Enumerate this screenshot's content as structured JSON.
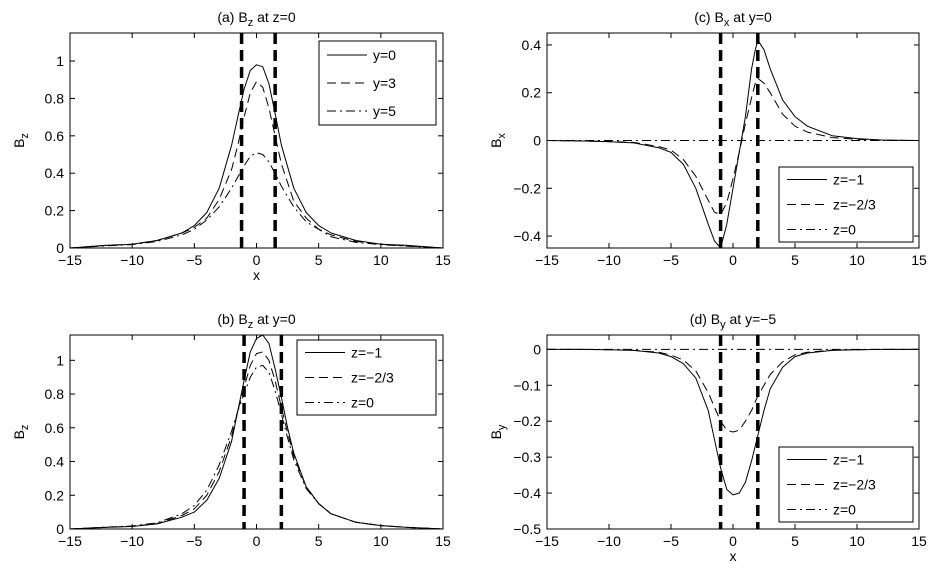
{
  "chart_data": [
    {
      "type": "line",
      "title": "(a) B",
      "title_sub": "z",
      "title_rest": " at z=0",
      "xlabel": "x",
      "ylabel": "B",
      "ylabel_sub": "z",
      "xlim": [
        -15,
        15
      ],
      "ylim": [
        0,
        1.15
      ],
      "xticks": [
        -15,
        -10,
        -5,
        0,
        5,
        10,
        15
      ],
      "yticks": [
        0,
        0.2,
        0.4,
        0.6,
        0.8,
        1
      ],
      "xtick_labels": [
        "−15",
        "−10",
        "−5",
        "0",
        "5",
        "10",
        "15"
      ],
      "ytick_labels": [
        "0",
        "0.2",
        "0.4",
        "0.6",
        "0.8",
        "1"
      ],
      "vlines": [
        -1.2,
        1.5
      ],
      "legend_position": "top-right",
      "x": [
        -15,
        -12,
        -10,
        -8,
        -6,
        -5,
        -4,
        -3,
        -2,
        -1.5,
        -1,
        -0.5,
        0,
        0.5,
        1,
        1.5,
        2,
        3,
        4,
        5,
        6,
        8,
        10,
        12,
        15
      ],
      "series": [
        {
          "name": "y=0",
          "dash": "solid",
          "values": [
            0.0,
            0.015,
            0.02,
            0.04,
            0.08,
            0.12,
            0.19,
            0.32,
            0.55,
            0.7,
            0.85,
            0.95,
            0.98,
            0.97,
            0.88,
            0.72,
            0.55,
            0.32,
            0.19,
            0.12,
            0.08,
            0.04,
            0.02,
            0.015,
            0.0
          ]
        },
        {
          "name": "y=3",
          "dash": "dashed",
          "values": [
            0.0,
            0.015,
            0.02,
            0.04,
            0.08,
            0.11,
            0.16,
            0.26,
            0.42,
            0.55,
            0.7,
            0.83,
            0.89,
            0.86,
            0.75,
            0.6,
            0.45,
            0.25,
            0.16,
            0.1,
            0.07,
            0.035,
            0.02,
            0.012,
            0.0
          ]
        },
        {
          "name": "y=5",
          "dash": "dashdot",
          "values": [
            0.0,
            0.012,
            0.018,
            0.035,
            0.07,
            0.1,
            0.15,
            0.22,
            0.32,
            0.38,
            0.44,
            0.49,
            0.51,
            0.5,
            0.46,
            0.4,
            0.33,
            0.22,
            0.14,
            0.1,
            0.06,
            0.03,
            0.018,
            0.01,
            0.0
          ]
        }
      ]
    },
    {
      "type": "line",
      "title": "(c) B",
      "title_sub": "x",
      "title_rest": " at y=0",
      "xlabel": "",
      "ylabel": "B",
      "ylabel_sub": "x",
      "xlim": [
        -15,
        15
      ],
      "ylim": [
        -0.45,
        0.45
      ],
      "xticks": [
        -15,
        -10,
        -5,
        0,
        5,
        10,
        15
      ],
      "yticks": [
        -0.4,
        -0.2,
        0,
        0.2,
        0.4
      ],
      "xtick_labels": [
        "−15",
        "−10",
        "−5",
        "0",
        "5",
        "10",
        "15"
      ],
      "ytick_labels": [
        "−0.4",
        "−0.2",
        "0",
        "0.2",
        "0.4"
      ],
      "vlines": [
        -1,
        2
      ],
      "legend_position": "bottom-right",
      "x": [
        -15,
        -12,
        -10,
        -8,
        -6,
        -5,
        -4,
        -3,
        -2,
        -1.5,
        -1,
        -0.5,
        0,
        0.5,
        1,
        1.5,
        1.8,
        2,
        2.5,
        3,
        4,
        5,
        6,
        8,
        10,
        12,
        15
      ],
      "series": [
        {
          "name": "z=−1",
          "dash": "solid",
          "values": [
            0.0,
            -0.002,
            -0.005,
            -0.01,
            -0.03,
            -0.05,
            -0.1,
            -0.2,
            -0.35,
            -0.42,
            -0.45,
            -0.35,
            -0.2,
            -0.05,
            0.1,
            0.3,
            0.38,
            0.42,
            0.38,
            0.3,
            0.17,
            0.1,
            0.06,
            0.02,
            0.008,
            0.002,
            0.0
          ]
        },
        {
          "name": "z=−2/3",
          "dash": "dashed",
          "values": [
            0.0,
            -0.002,
            -0.004,
            -0.008,
            -0.025,
            -0.04,
            -0.08,
            -0.15,
            -0.25,
            -0.3,
            -0.31,
            -0.26,
            -0.16,
            -0.05,
            0.07,
            0.18,
            0.24,
            0.26,
            0.24,
            0.2,
            0.11,
            0.06,
            0.035,
            0.012,
            0.005,
            0.001,
            0.0
          ]
        },
        {
          "name": "z=0",
          "dash": "dashdot",
          "values": [
            0,
            0,
            0,
            0,
            0,
            0,
            0,
            0,
            0,
            0,
            0,
            0,
            0,
            0,
            0,
            0,
            0,
            0,
            0,
            0,
            0,
            0,
            0,
            0,
            0,
            0,
            0
          ]
        }
      ]
    },
    {
      "type": "line",
      "title": "(b) B",
      "title_sub": "z",
      "title_rest": " at y=0",
      "xlabel": "",
      "ylabel": "B",
      "ylabel_sub": "z",
      "xlim": [
        -15,
        15
      ],
      "ylim": [
        0,
        1.15
      ],
      "xticks": [
        -15,
        -10,
        -5,
        0,
        5,
        10,
        15
      ],
      "yticks": [
        0,
        0.2,
        0.4,
        0.6,
        0.8,
        1
      ],
      "xtick_labels": [
        "−15",
        "−10",
        "−5",
        "0",
        "5",
        "10",
        "15"
      ],
      "ytick_labels": [
        "0",
        "0.2",
        "0.4",
        "0.6",
        "0.8",
        "1"
      ],
      "vlines": [
        -1,
        2
      ],
      "legend_position": "top-right",
      "x": [
        -15,
        -12,
        -10,
        -8,
        -6,
        -5,
        -4,
        -3,
        -2,
        -1.5,
        -1,
        -0.5,
        0,
        0.5,
        1,
        1.5,
        2,
        2.5,
        3,
        4,
        5,
        6,
        8,
        10,
        12,
        15
      ],
      "series": [
        {
          "name": "z=−1",
          "dash": "solid",
          "values": [
            0.0,
            0.01,
            0.015,
            0.03,
            0.07,
            0.1,
            0.17,
            0.3,
            0.52,
            0.7,
            0.88,
            1.05,
            1.13,
            1.15,
            1.1,
            0.95,
            0.78,
            0.6,
            0.45,
            0.25,
            0.15,
            0.09,
            0.04,
            0.02,
            0.01,
            0.0
          ]
        },
        {
          "name": "z=−2/3",
          "dash": "dashed",
          "values": [
            0.0,
            0.01,
            0.016,
            0.032,
            0.08,
            0.12,
            0.2,
            0.34,
            0.55,
            0.7,
            0.84,
            0.97,
            1.04,
            1.05,
            1.0,
            0.88,
            0.72,
            0.57,
            0.43,
            0.25,
            0.15,
            0.09,
            0.04,
            0.02,
            0.01,
            0.0
          ]
        },
        {
          "name": "z=0",
          "dash": "dashdot",
          "values": [
            0.0,
            0.012,
            0.018,
            0.036,
            0.09,
            0.14,
            0.23,
            0.38,
            0.58,
            0.7,
            0.8,
            0.9,
            0.96,
            0.97,
            0.93,
            0.82,
            0.68,
            0.54,
            0.41,
            0.24,
            0.15,
            0.09,
            0.04,
            0.02,
            0.01,
            0.0
          ]
        }
      ]
    },
    {
      "type": "line",
      "title": "(d) B",
      "title_sub": "y",
      "title_rest": " at y=−5",
      "xlabel": "x",
      "ylabel": "B",
      "ylabel_sub": "y",
      "xlim": [
        -15,
        15
      ],
      "ylim": [
        -0.5,
        0.04
      ],
      "xticks": [
        -15,
        -10,
        -5,
        0,
        5,
        10,
        15
      ],
      "yticks": [
        -0.5,
        -0.4,
        -0.3,
        -0.2,
        -0.1,
        0
      ],
      "xtick_labels": [
        "−15",
        "−10",
        "−5",
        "0",
        "5",
        "10",
        "15"
      ],
      "ytick_labels": [
        "−0.5",
        "−0.4",
        "−0.3",
        "−0.2",
        "−0.1",
        "0"
      ],
      "vlines": [
        -1,
        2
      ],
      "legend_position": "bottom-right",
      "x": [
        -15,
        -12,
        -10,
        -8,
        -6,
        -5,
        -4,
        -3,
        -2,
        -1.5,
        -1,
        -0.5,
        0,
        0.5,
        1,
        1.5,
        2,
        2.5,
        3,
        4,
        5,
        6,
        8,
        10,
        12,
        15
      ],
      "series": [
        {
          "name": "z=−1",
          "dash": "solid",
          "values": [
            0.0,
            0.0,
            -0.001,
            -0.003,
            -0.01,
            -0.02,
            -0.04,
            -0.08,
            -0.17,
            -0.25,
            -0.33,
            -0.39,
            -0.405,
            -0.4,
            -0.37,
            -0.31,
            -0.24,
            -0.17,
            -0.11,
            -0.05,
            -0.02,
            -0.01,
            -0.003,
            -0.001,
            0.0,
            0.0
          ]
        },
        {
          "name": "z=−2/3",
          "dash": "dashed",
          "values": [
            0.0,
            0.0,
            -0.001,
            -0.003,
            -0.008,
            -0.016,
            -0.03,
            -0.06,
            -0.12,
            -0.16,
            -0.2,
            -0.225,
            -0.23,
            -0.225,
            -0.2,
            -0.17,
            -0.13,
            -0.1,
            -0.07,
            -0.035,
            -0.015,
            -0.008,
            -0.002,
            -0.001,
            0.0,
            0.0
          ]
        },
        {
          "name": "z=0",
          "dash": "dashdot",
          "values": [
            0,
            0,
            0,
            0,
            0,
            0,
            0,
            0,
            0,
            0,
            0,
            0,
            0,
            0,
            0,
            0,
            0,
            0,
            0,
            0,
            0,
            0,
            0,
            0,
            0,
            0
          ]
        }
      ]
    }
  ]
}
